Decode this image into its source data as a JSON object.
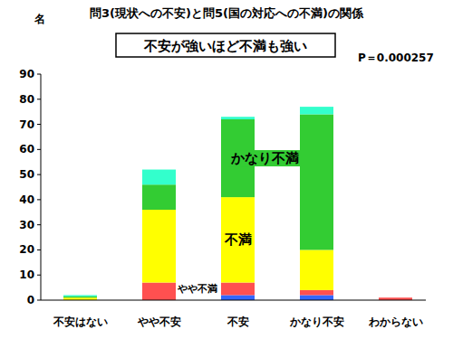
{
  "chart_data": {
    "type": "bar",
    "title": "問3(現状への不安)と問5(国の対応への不満)の関係",
    "annotations": [
      "不安が強いほど不満も強い",
      "P＝0.000257"
    ],
    "y_label": "名",
    "categories": [
      "不安はない",
      "やや不安",
      "不安",
      "かなり不安",
      "わからない"
    ],
    "series": [
      {
        "color": "#3366ff",
        "values": [
          0,
          0,
          2,
          2,
          0
        ]
      },
      {
        "name": "やや不満",
        "color": "#ff5050",
        "values": [
          0,
          7,
          5,
          2,
          1
        ]
      },
      {
        "name": "不満",
        "color": "#ffff00",
        "values": [
          1,
          29,
          34,
          16,
          0
        ]
      },
      {
        "name": "かなり不満",
        "color": "#33cc33",
        "values": [
          0.5,
          10,
          31,
          54,
          0
        ]
      },
      {
        "color": "#33ffcc",
        "values": [
          0.5,
          6,
          1,
          3,
          0
        ]
      }
    ],
    "stacked": true,
    "grid": false,
    "ylim": [
      0,
      90
    ],
    "yticks": [
      0,
      10,
      20,
      30,
      40,
      50,
      60,
      70,
      80,
      90
    ]
  }
}
